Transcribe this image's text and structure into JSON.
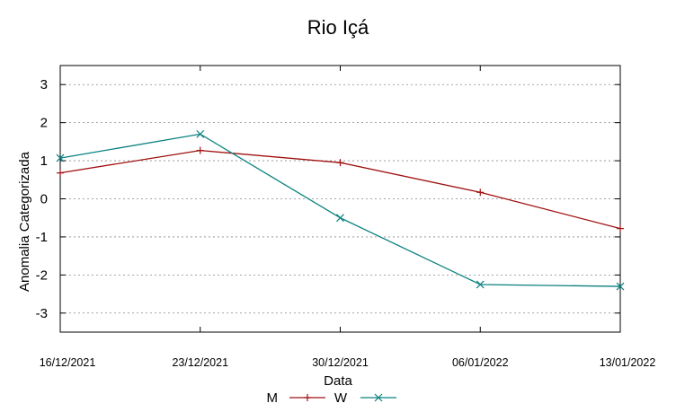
{
  "chart_data": {
    "type": "line",
    "title": "Rio Içá",
    "xlabel": "Data",
    "ylabel": "Anomalia Categorizada",
    "categories": [
      "16/12/2021",
      "23/12/2021",
      "30/12/2021",
      "06/01/2022",
      "13/01/2022"
    ],
    "ylim": [
      -3.5,
      3.5
    ],
    "yticks": [
      "3",
      "2",
      "1",
      "0",
      "-1",
      "-2",
      "-3"
    ],
    "ytick_values": [
      3,
      2,
      1,
      0,
      -1,
      -2,
      -3
    ],
    "grid": true,
    "legend_position": "bottom-center",
    "series": [
      {
        "name": "M",
        "color": "#a01010",
        "marker": "plus",
        "values": [
          0.68,
          1.27,
          0.95,
          0.17,
          -0.78
        ]
      },
      {
        "name": "W",
        "color": "#0a8080",
        "marker": "cross",
        "values": [
          1.07,
          1.7,
          -0.5,
          -2.25,
          -2.3
        ]
      }
    ]
  }
}
